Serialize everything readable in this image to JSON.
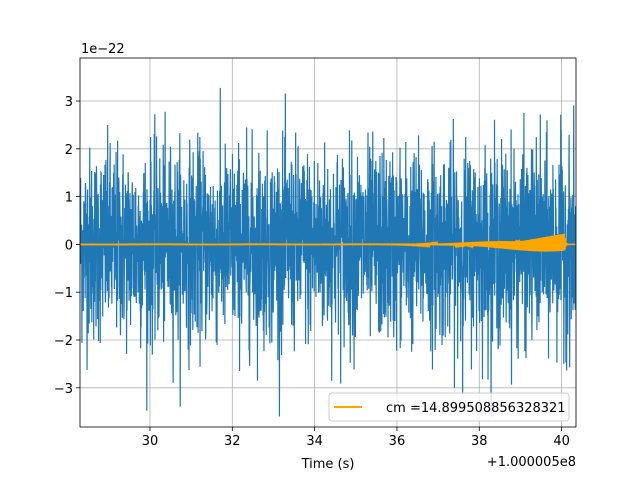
{
  "chart_data": {
    "type": "line",
    "title": "",
    "xlabel": "Time (s)",
    "ylabel": "",
    "x_offset_label": "+1.000005e8",
    "y_scale_label": "1e−22",
    "xlim": [
      28.3,
      40.35
    ],
    "ylim": [
      -3.82,
      3.9
    ],
    "x_ticks": [
      30,
      32,
      34,
      36,
      38,
      40
    ],
    "x_tick_labels": [
      "30",
      "32",
      "34",
      "36",
      "38",
      "40"
    ],
    "y_ticks": [
      -3,
      -2,
      -1,
      0,
      1,
      2,
      3
    ],
    "y_tick_labels": [
      "−3",
      "−2",
      "−1",
      "0",
      "1",
      "2",
      "3"
    ],
    "grid": true,
    "legend_position": "lower-right",
    "series": [
      {
        "name": "",
        "color": "#1f77b4",
        "description_values": "strain noise, approx. ±2.3 band with peaks near ±3.6",
        "envelope_peak": 3.6,
        "envelope_typical": 2.2
      },
      {
        "name": "cm =14.899508856328321",
        "color": "#ffa500",
        "chirp_start": 35.6,
        "chirp_peak_time": 40.08,
        "chirp_peak_amplitude": 0.22
      }
    ]
  }
}
